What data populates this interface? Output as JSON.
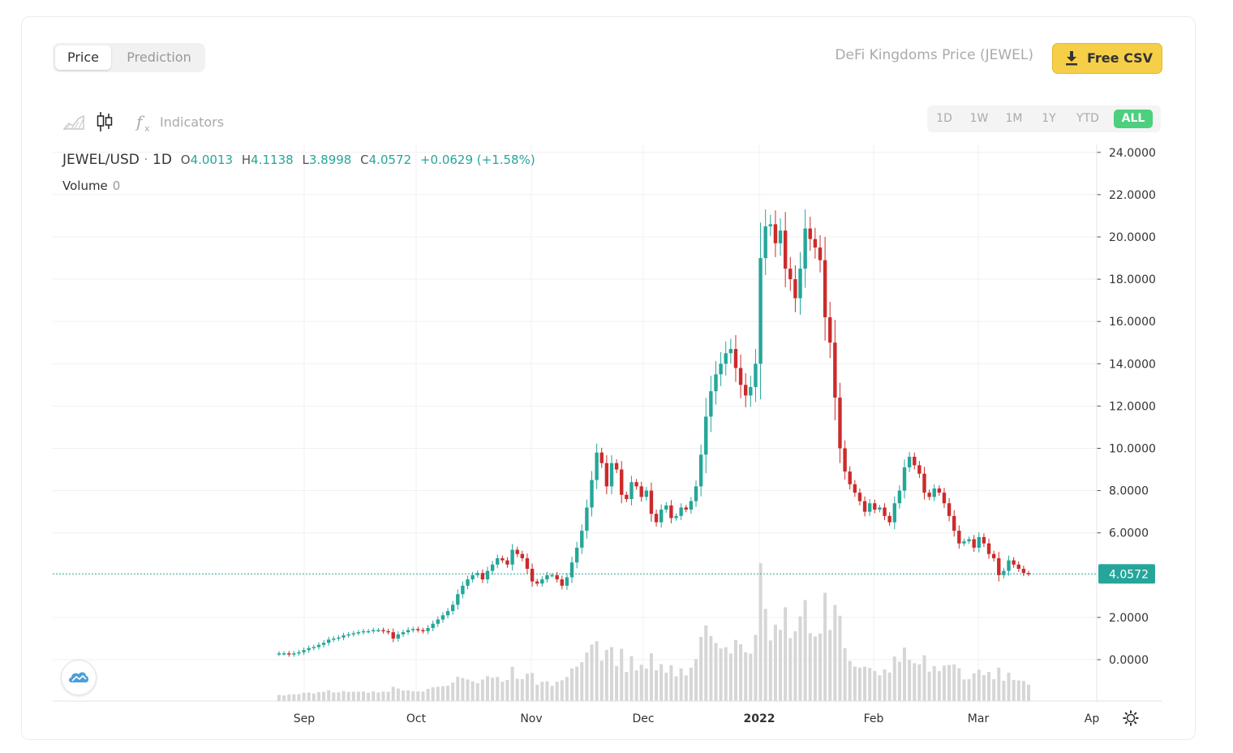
{
  "tabs": {
    "price": "Price",
    "prediction": "Prediction"
  },
  "page_title": "DeFi Kingdoms Price (JEWEL)",
  "csv_button": "Free CSV",
  "toolbar": {
    "indicators": "Indicators"
  },
  "ranges": [
    "1D",
    "1W",
    "1M",
    "1Y",
    "YTD",
    "ALL"
  ],
  "active_range": "ALL",
  "legend": {
    "pair": "JEWEL/USD",
    "sep": "·",
    "interval": "1D",
    "o_key": "O",
    "o_val": "4.0013",
    "h_key": "H",
    "h_val": "4.1138",
    "l_key": "L",
    "l_val": "3.8998",
    "c_key": "C",
    "c_val": "4.0572",
    "change": "+0.0629 (+1.58%)",
    "volume_label": "Volume",
    "volume_value": "0"
  },
  "colors": {
    "up": "#26a69a",
    "down": "#cc2b2b",
    "accent": "#4cd07d",
    "csv": "#f5cf47",
    "volume": "#d6d6d6"
  },
  "chart_data": {
    "type": "candlestick",
    "pair": "JEWEL/USD",
    "interval": "1D",
    "y_ticks": [
      "24.0000",
      "22.0000",
      "20.0000",
      "18.0000",
      "16.0000",
      "14.0000",
      "12.0000",
      "10.0000",
      "8.0000",
      "6.0000",
      "4.0572",
      "2.0000",
      "0.0000"
    ],
    "ylim": [
      -2.0,
      24.5
    ],
    "x_labels": [
      "Sep",
      "Oct",
      "Nov",
      "Dec",
      "2022",
      "Feb",
      "Mar",
      "Ap"
    ],
    "last_price": 4.0572,
    "series_close": [
      0.3,
      0.3,
      0.25,
      0.3,
      0.35,
      0.45,
      0.55,
      0.6,
      0.7,
      0.8,
      0.95,
      1.0,
      1.05,
      1.15,
      1.2,
      1.25,
      1.3,
      1.35,
      1.35,
      1.4,
      1.4,
      1.35,
      1.3,
      1.0,
      1.2,
      1.3,
      1.4,
      1.45,
      1.4,
      1.35,
      1.5,
      1.7,
      1.9,
      2.1,
      2.3,
      2.6,
      3.1,
      3.5,
      3.8,
      4.0,
      4.1,
      3.8,
      4.2,
      4.5,
      4.8,
      4.7,
      4.5,
      5.2,
      5.0,
      4.8,
      4.3,
      3.7,
      3.6,
      3.8,
      4.0,
      4.0,
      3.8,
      3.5,
      3.9,
      4.6,
      5.3,
      6.1,
      7.2,
      8.5,
      9.8,
      9.3,
      8.2,
      9.3,
      9.0,
      7.8,
      7.6,
      8.4,
      8.2,
      7.7,
      8.0,
      6.9,
      6.5,
      7.1,
      7.3,
      6.7,
      6.8,
      7.2,
      7.1,
      7.5,
      8.2,
      9.7,
      11.5,
      12.7,
      13.5,
      14.0,
      14.5,
      14.7,
      13.8,
      13.0,
      12.5,
      12.9,
      14.0,
      19.0,
      20.5,
      20.6,
      19.7,
      20.3,
      18.5,
      18.0,
      17.1,
      18.5,
      20.4,
      19.9,
      19.5,
      18.9,
      16.2,
      15.0,
      12.4,
      10.0,
      8.9,
      8.3,
      7.9,
      7.5,
      7.0,
      7.4,
      7.1,
      7.2,
      6.8,
      6.5,
      7.4,
      8.0,
      9.1,
      9.6,
      9.2,
      8.8,
      7.9,
      7.7,
      8.1,
      7.9,
      7.4,
      6.8,
      6.1,
      5.5,
      5.6,
      5.7,
      5.3,
      5.8,
      5.5,
      5.0,
      4.8,
      4.0,
      4.2,
      4.7,
      4.5,
      4.3,
      4.1,
      4.06
    ],
    "volume_note": "Volume bars (unscaled)"
  }
}
